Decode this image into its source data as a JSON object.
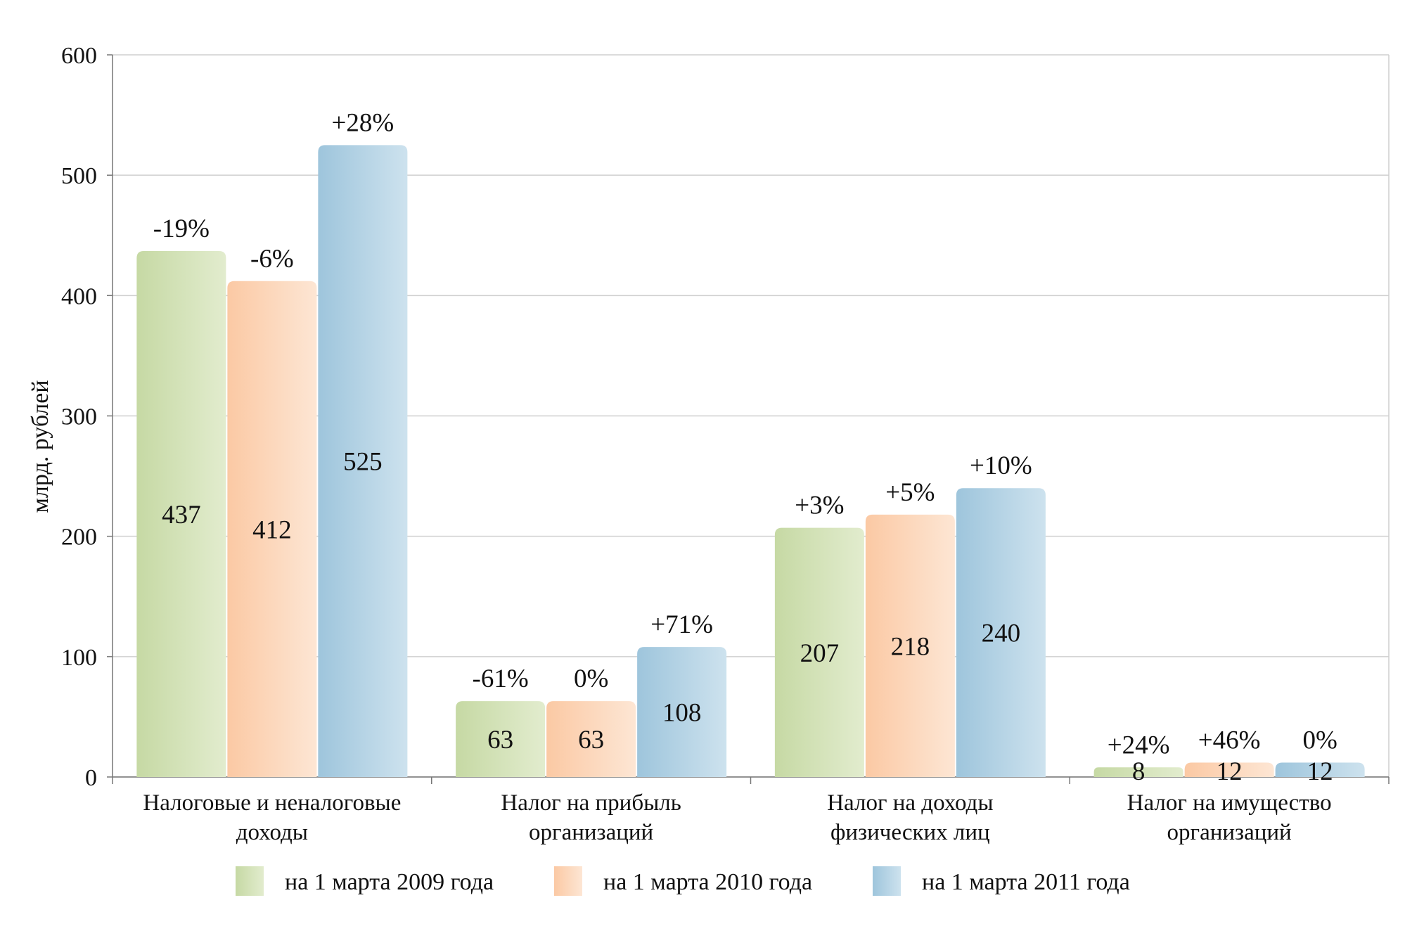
{
  "chart_data": {
    "type": "bar",
    "ylabel": "млрд. рублей",
    "ylim": [
      0,
      600
    ],
    "yticks": [
      0,
      100,
      200,
      300,
      400,
      500,
      600
    ],
    "grid": true,
    "legend_position": "bottom",
    "categories": [
      [
        "Налоговые и неналоговые",
        "доходы"
      ],
      [
        "Налог на прибыль",
        "организаций"
      ],
      [
        "Налог на доходы",
        "физических лиц"
      ],
      [
        "Налог на имущество",
        "организаций"
      ]
    ],
    "series": [
      {
        "name": "на 1 марта 2009 года",
        "color": "#c6d9a4",
        "color_light": "#e2ecce",
        "values": [
          437,
          63,
          207,
          8
        ],
        "changes": [
          "-19%",
          "-61%",
          "+3%",
          "+24%"
        ]
      },
      {
        "name": "на 1 марта 2010 года",
        "color": "#fbc9a4",
        "color_light": "#fde6d4",
        "values": [
          412,
          63,
          218,
          12
        ],
        "changes": [
          "-6%",
          "0%",
          "+5%",
          "+46%"
        ]
      },
      {
        "name": "на 1 марта 2011 года",
        "color": "#9ec5dc",
        "color_light": "#cde2ee",
        "values": [
          525,
          108,
          240,
          12
        ],
        "changes": [
          "+28%",
          "+71%",
          "+10%",
          "0%"
        ]
      }
    ]
  }
}
